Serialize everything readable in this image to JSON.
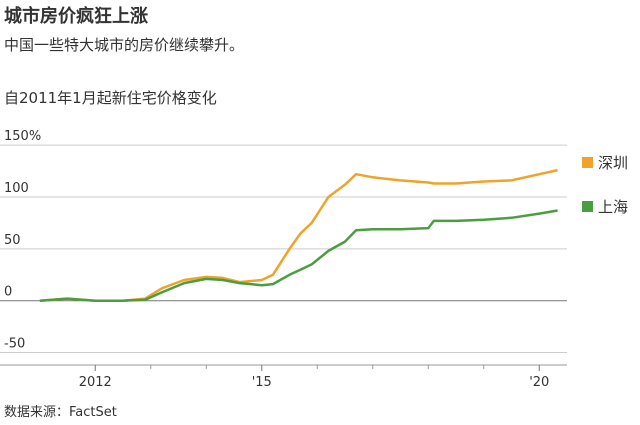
{
  "chart_data": {
    "type": "line",
    "title": "城市房价疯狂上涨",
    "subtitle": "中国一些特大城市的房价继续攀升。",
    "y_label": "自2011年1月起新住宅价格变化",
    "source": "数据来源：FactSet",
    "x": [
      2011.0,
      2011.5,
      2012.0,
      2012.5,
      2012.9,
      2013.2,
      2013.6,
      2014.0,
      2014.3,
      2014.6,
      2015.0,
      2015.2,
      2015.5,
      2015.7,
      2015.9,
      2016.2,
      2016.5,
      2016.7,
      2017.0,
      2017.5,
      2018.0,
      2018.1,
      2018.5,
      2019.0,
      2019.5,
      2020.0,
      2020.33
    ],
    "series": [
      {
        "name": "深圳",
        "color": "#f0a32b",
        "values": [
          0,
          2,
          0,
          0,
          2,
          12,
          20,
          23,
          22,
          18,
          20,
          25,
          50,
          65,
          75,
          100,
          112,
          122,
          119,
          116,
          114,
          113,
          113,
          115,
          116,
          122,
          126
        ]
      },
      {
        "name": "上海",
        "color": "#4a9e3f",
        "values": [
          0,
          2,
          0,
          0,
          1,
          8,
          17,
          21,
          20,
          17,
          15,
          16,
          25,
          30,
          35,
          48,
          57,
          68,
          69,
          69,
          70,
          77,
          77,
          78,
          80,
          84,
          87
        ]
      }
    ],
    "xlim": [
      2010.95,
      2020.5
    ],
    "xticks": [
      {
        "value": 2012,
        "label": "2012"
      },
      {
        "value": 2015,
        "label": "'15"
      },
      {
        "value": 2020,
        "label": "'20"
      }
    ],
    "xminorticks": [
      2013,
      2014,
      2016,
      2017,
      2018,
      2019
    ],
    "ylim": [
      -62,
      155
    ],
    "yticks": [
      {
        "value": 150,
        "label": "150%"
      },
      100,
      50,
      0,
      -50
    ],
    "grid": true
  }
}
